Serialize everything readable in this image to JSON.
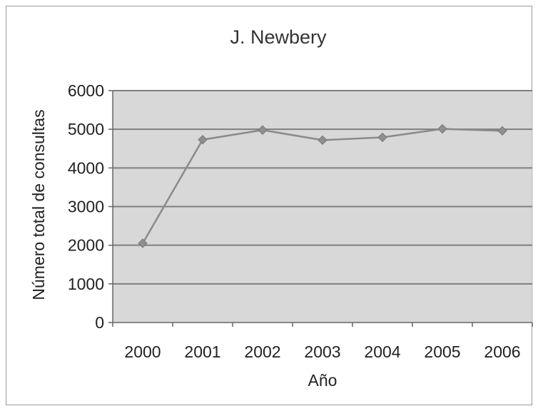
{
  "chart_data": {
    "type": "line",
    "title": "J. Newbery",
    "xlabel": "Año",
    "ylabel": "Número total de consultas",
    "categories": [
      "2000",
      "2001",
      "2002",
      "2003",
      "2004",
      "2005",
      "2006"
    ],
    "series": [
      {
        "values": [
          2050,
          4730,
          4980,
          4720,
          4790,
          5010,
          4960
        ]
      }
    ],
    "ylim": [
      0,
      6000
    ],
    "yticks": [
      0,
      1000,
      2000,
      3000,
      4000,
      5000,
      6000
    ],
    "grid": true,
    "legend": "none",
    "colors": {
      "plot_area": "#d8d8d8",
      "line": "#8a8a8a",
      "marker": "#8f8f8f",
      "grid": "#7f7f7f",
      "axis": "#666666"
    }
  }
}
